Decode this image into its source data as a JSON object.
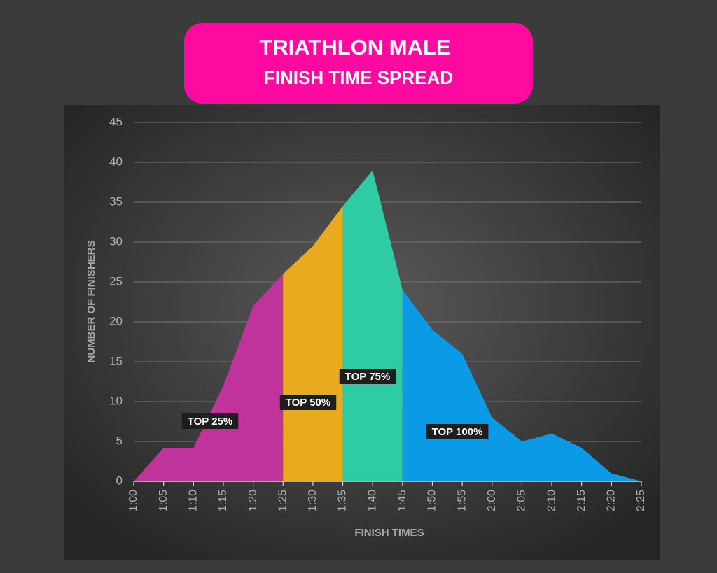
{
  "chart_data": {
    "type": "area",
    "title": "TRIATHLON MALE",
    "subtitle": "FINISH TIME SPREAD",
    "x_label": "FINISH TIMES",
    "y_label": "NUMBER OF FINISHERS",
    "categories": [
      "1:00",
      "1:05",
      "1:10",
      "1:15",
      "1:20",
      "1:25",
      "1:30",
      "1:35",
      "1:40",
      "1:45",
      "1:50",
      "1:55",
      "2:00",
      "2:05",
      "2:10",
      "2:15",
      "2:20",
      "2:25"
    ],
    "values": [
      0,
      4.2,
      4.2,
      12,
      22,
      26,
      29.5,
      34.5,
      39,
      24,
      19,
      16,
      8,
      5,
      6,
      4.2,
      1,
      0
    ],
    "segments": [
      {
        "label": "TOP 25%",
        "color": "#c0339b",
        "from": "1:00",
        "to": "1:25"
      },
      {
        "label": "TOP 50%",
        "color": "#eaaa1f",
        "from": "1:25",
        "to": "1:35"
      },
      {
        "label": "TOP 75%",
        "color": "#2ecba5",
        "from": "1:35",
        "to": "1:45"
      },
      {
        "label": "TOP 100%",
        "color": "#0a9ae6",
        "from": "1:45",
        "to": "2:25"
      }
    ],
    "ylim": [
      0,
      45
    ],
    "yticks": [
      0,
      5,
      10,
      15,
      20,
      25,
      30,
      35,
      40,
      45
    ],
    "grid": true
  }
}
